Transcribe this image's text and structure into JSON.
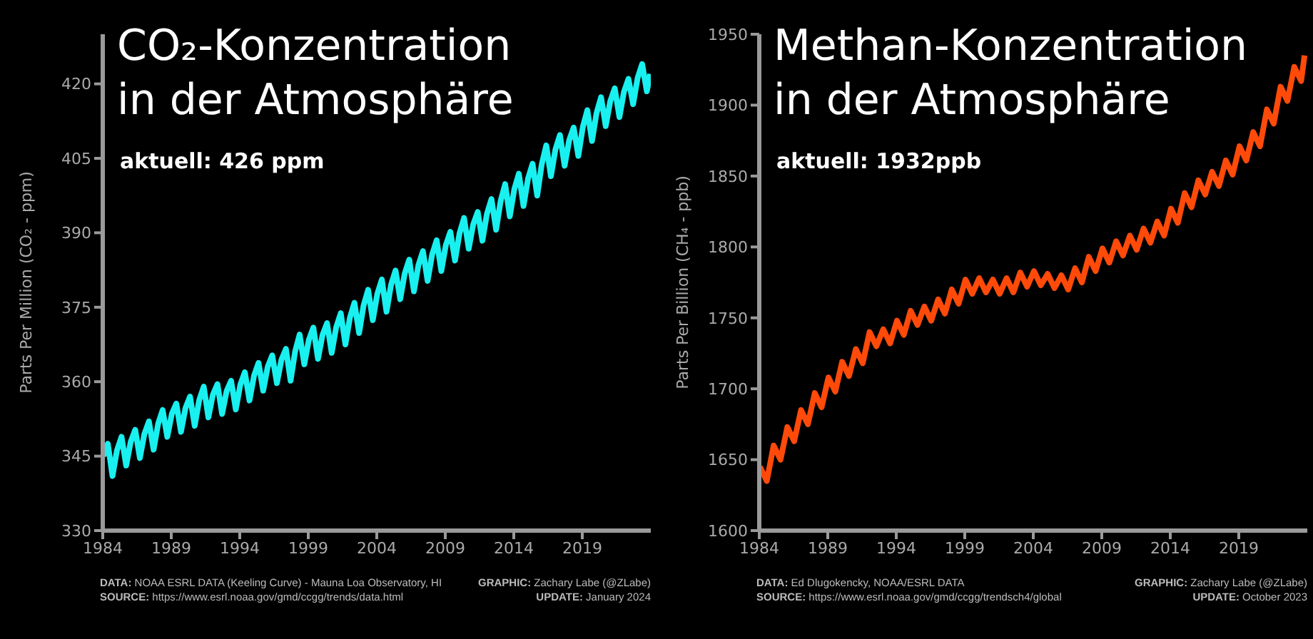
{
  "chart_data": [
    {
      "type": "line",
      "title": "CO₂-Konzentration in der Atmosphäre",
      "subtitle": "aktuell: 426 ppm",
      "ylabel": "Parts Per Million (CO₂ - ppm)",
      "x": [
        1984.04,
        1984.37,
        1984.71,
        1985.04,
        1985.37,
        1985.71,
        1986.04,
        1986.37,
        1986.71,
        1987.04,
        1987.37,
        1987.71,
        1988.04,
        1988.37,
        1988.71,
        1989.04,
        1989.37,
        1989.71,
        1990.04,
        1990.37,
        1990.71,
        1991.04,
        1991.37,
        1991.71,
        1992.04,
        1992.37,
        1992.71,
        1993.04,
        1993.37,
        1993.71,
        1994.04,
        1994.37,
        1994.71,
        1995.04,
        1995.37,
        1995.71,
        1996.04,
        1996.37,
        1996.71,
        1997.04,
        1997.37,
        1997.71,
        1998.04,
        1998.37,
        1998.71,
        1999.04,
        1999.37,
        1999.71,
        2000.04,
        2000.37,
        2000.71,
        2001.04,
        2001.37,
        2001.71,
        2002.04,
        2002.37,
        2002.71,
        2003.04,
        2003.37,
        2003.71,
        2004.04,
        2004.37,
        2004.71,
        2005.04,
        2005.37,
        2005.71,
        2006.04,
        2006.37,
        2006.71,
        2007.04,
        2007.37,
        2007.71,
        2008.04,
        2008.37,
        2008.71,
        2009.04,
        2009.37,
        2009.71,
        2010.04,
        2010.37,
        2010.71,
        2011.04,
        2011.37,
        2011.71,
        2012.04,
        2012.37,
        2012.71,
        2013.04,
        2013.37,
        2013.71,
        2014.04,
        2014.37,
        2014.71,
        2015.04,
        2015.37,
        2015.71,
        2016.04,
        2016.37,
        2016.71,
        2017.04,
        2017.37,
        2017.71,
        2018.04,
        2018.37,
        2018.71,
        2019.04,
        2019.37,
        2019.71,
        2020.04,
        2020.37,
        2020.71,
        2021.04,
        2021.37,
        2021.71,
        2022.04,
        2022.37,
        2022.71,
        2023.04,
        2023.37,
        2023.71,
        2023.96
      ],
      "series": [
        {
          "color": "#19f0f0",
          "values": [
            345.0,
            347.5,
            341.0,
            346.2,
            348.9,
            343.1,
            347.9,
            350.3,
            344.6,
            349.5,
            352.0,
            346.3,
            351.5,
            354.3,
            348.9,
            353.5,
            355.6,
            349.9,
            354.7,
            357.0,
            351.1,
            356.3,
            359.0,
            352.8,
            357.4,
            359.5,
            353.5,
            358.1,
            360.2,
            354.4,
            359.4,
            361.9,
            356.2,
            361.2,
            363.8,
            358.2,
            363.0,
            365.3,
            359.7,
            364.4,
            366.6,
            360.2,
            366.1,
            369.5,
            363.5,
            368.4,
            370.9,
            364.6,
            369.4,
            371.8,
            365.8,
            371.0,
            373.8,
            367.5,
            372.9,
            375.9,
            369.8,
            375.4,
            378.5,
            372.4,
            377.7,
            380.6,
            374.1,
            379.5,
            382.4,
            376.6,
            381.8,
            384.6,
            378.2,
            383.5,
            386.3,
            380.3,
            385.6,
            388.5,
            382.3,
            387.5,
            390.2,
            384.4,
            389.9,
            393.0,
            386.8,
            391.7,
            394.2,
            388.4,
            393.8,
            396.8,
            390.6,
            396.4,
            399.8,
            393.3,
            398.8,
            401.9,
            395.4,
            400.9,
            403.9,
            397.5,
            403.8,
            407.6,
            401.4,
            406.8,
            409.7,
            403.5,
            408.6,
            411.2,
            405.5,
            411.3,
            414.7,
            408.5,
            414.1,
            417.3,
            411.5,
            416.5,
            419.1,
            413.3,
            418.4,
            421.0,
            415.9,
            421.2,
            424.0,
            418.5,
            422.0
          ]
        }
      ],
      "xlim": [
        1984,
        2024
      ],
      "xticks": [
        1984,
        1989,
        1994,
        1999,
        2004,
        2009,
        2014,
        2019
      ],
      "ylim": [
        330,
        430
      ],
      "yticks": [
        330,
        345,
        360,
        375,
        390,
        405,
        420
      ],
      "grid": false,
      "legend": false,
      "marker": "none",
      "line_style": "solid",
      "annotations": [
        "DATA: NOAA ESRL DATA (Keeling Curve) - Mauna Loa Observatory, HI",
        "SOURCE: https://www.esrl.noaa.gov/gmd/ccgg/trends/data.html",
        "GRAPHIC: Zachary Labe (@ZLabe)",
        "UPDATE: January 2024"
      ]
    },
    {
      "type": "line",
      "title": "Methan-Konzentration in der Atmosphäre",
      "subtitle": "aktuell: 1932ppb",
      "ylabel": "Parts Per Billion (CH₄ - ppb)",
      "x": [
        1984.05,
        1984.55,
        1985.05,
        1985.55,
        1986.05,
        1986.55,
        1987.05,
        1987.55,
        1988.05,
        1988.55,
        1989.05,
        1989.55,
        1990.05,
        1990.55,
        1991.05,
        1991.55,
        1992.05,
        1992.55,
        1993.05,
        1993.55,
        1994.05,
        1994.55,
        1995.05,
        1995.55,
        1996.05,
        1996.55,
        1997.05,
        1997.55,
        1998.05,
        1998.55,
        1999.05,
        1999.55,
        2000.05,
        2000.55,
        2001.05,
        2001.55,
        2002.05,
        2002.55,
        2003.05,
        2003.55,
        2004.05,
        2004.55,
        2005.05,
        2005.55,
        2006.05,
        2006.55,
        2007.05,
        2007.55,
        2008.05,
        2008.55,
        2009.05,
        2009.55,
        2010.05,
        2010.55,
        2011.05,
        2011.55,
        2012.05,
        2012.55,
        2013.05,
        2013.55,
        2014.05,
        2014.55,
        2015.05,
        2015.55,
        2016.05,
        2016.55,
        2017.05,
        2017.55,
        2018.05,
        2018.55,
        2019.05,
        2019.55,
        2020.05,
        2020.55,
        2021.05,
        2021.55,
        2022.05,
        2022.55,
        2023.05,
        2023.55,
        2023.8
      ],
      "series": [
        {
          "color": "#ff4a0a",
          "values": [
            1645,
            1635,
            1660,
            1650,
            1673,
            1663,
            1685,
            1675,
            1697,
            1687,
            1708,
            1698,
            1719,
            1709,
            1728,
            1718,
            1740,
            1730,
            1742,
            1732,
            1748,
            1738,
            1755,
            1745,
            1758,
            1748,
            1763,
            1753,
            1770,
            1760,
            1777,
            1767,
            1778,
            1768,
            1777,
            1767,
            1778,
            1768,
            1782,
            1772,
            1783,
            1773,
            1781,
            1771,
            1780,
            1770,
            1785,
            1775,
            1793,
            1783,
            1799,
            1789,
            1804,
            1794,
            1808,
            1798,
            1813,
            1803,
            1818,
            1808,
            1827,
            1817,
            1838,
            1828,
            1847,
            1837,
            1853,
            1843,
            1861,
            1851,
            1871,
            1861,
            1881,
            1871,
            1897,
            1887,
            1913,
            1903,
            1927,
            1917,
            1935
          ]
        }
      ],
      "xlim": [
        1984,
        2024
      ],
      "xticks": [
        1984,
        1989,
        1994,
        1999,
        2004,
        2009,
        2014,
        2019
      ],
      "ylim": [
        1600,
        1950
      ],
      "yticks": [
        1600,
        1650,
        1700,
        1750,
        1800,
        1850,
        1900,
        1950
      ],
      "grid": false,
      "legend": false,
      "marker": "none",
      "line_style": "solid",
      "annotations": [
        "DATA: Ed Dlugokencky, NOAA/ESRL DATA",
        "SOURCE: https://www.esrl.noaa.gov/gmd/ccgg/trendsch4/global",
        "GRAPHIC: Zachary Labe (@ZLabe)",
        "UPDATE: October 2023"
      ]
    }
  ]
}
